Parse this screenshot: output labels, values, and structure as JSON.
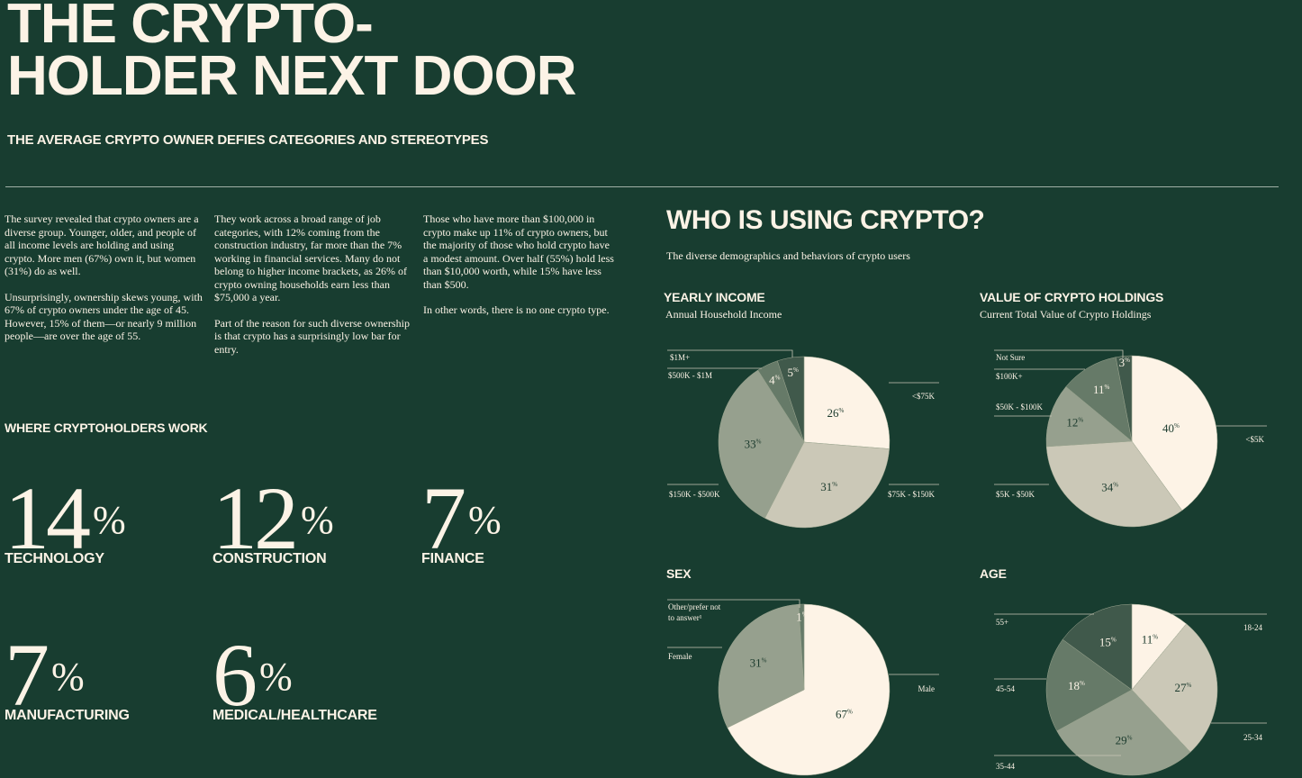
{
  "header": {
    "title_line1": "THE CRYPTO-",
    "title_line2": "HOLDER NEXT DOOR",
    "subtitle": "THE AVERAGE CRYPTO OWNER DEFIES CATEGORIES AND STEREOTYPES"
  },
  "body": {
    "col1": [
      "The survey revealed that crypto owners are a diverse group. Younger, older, and people of all income levels are holding and using crypto. More men (67%) own it, but women (31%) do as well.",
      "Unsurprisingly, ownership skews young, with 67% of crypto owners under the age of 45. However, 15% of them—or nearly 9 million people—are over the age of 55."
    ],
    "col2": [
      "They work across a broad range of job categories, with 12% coming from the construction industry, far more than the 7% working in financial services. Many do not belong to higher income brackets, as 26% of crypto owning households earn less than $75,000 a year.",
      "Part of the reason for such diverse ownership is that crypto has a surprisingly low bar for entry."
    ],
    "col3": [
      "Those who have more than $100,000 in crypto make up 11% of crypto owners, but the majority of those who hold crypto have a modest amount. Over half (55%) hold less than $10,000 worth, while 15% have less than $500.",
      "In other words, there is no one crypto type."
    ]
  },
  "work": {
    "heading": "WHERE CRYPTOHOLDERS WORK",
    "percent_sign": "%",
    "stats": [
      {
        "value": "14",
        "label": "TECHNOLOGY"
      },
      {
        "value": "12",
        "label": "CONSTRUCTION"
      },
      {
        "value": "7",
        "label": "FINANCE"
      },
      {
        "value": "7",
        "label": "MANUFACTURING"
      },
      {
        "value": "6",
        "label": "MEDICAL/HEALTHCARE"
      }
    ]
  },
  "who": {
    "title": "WHO IS USING CRYPTO?",
    "subtitle": "The diverse demographics and behaviors of crypto users"
  },
  "colors": {
    "background": "#183d30",
    "text": "#fcf3e6",
    "slice_cream": "#fdf3e6",
    "slice_light": "#cbc8b7",
    "slice_mid": "#96a08e",
    "slice_dark": "#667a68",
    "slice_darker": "#40594b",
    "leader": "#c9c6b6"
  },
  "chart_data": [
    {
      "type": "pie",
      "title": "YEARLY INCOME",
      "subtitle": "Annual Household Income",
      "categories": [
        "<$75K",
        "$75K - $150K",
        "$150K - $500K",
        "$500K - $1M",
        "$1M+"
      ],
      "values": [
        26,
        31,
        33,
        4,
        5
      ]
    },
    {
      "type": "pie",
      "title": "VALUE OF CRYPTO HOLDINGS",
      "subtitle": "Current Total Value of Crypto Holdings",
      "categories": [
        "<$5K",
        "$5K - $50K",
        "$50K - $100K",
        "$100K+",
        "Not Sure"
      ],
      "values": [
        40,
        34,
        12,
        11,
        3
      ]
    },
    {
      "type": "pie",
      "title": "SEX",
      "subtitle": "",
      "categories": [
        "Male",
        "Female",
        "Other/prefer not to answer¹"
      ],
      "values": [
        67,
        31,
        1
      ]
    },
    {
      "type": "pie",
      "title": "AGE",
      "subtitle": "",
      "categories": [
        "18-24",
        "25-34",
        "35-44",
        "45-54",
        "55+"
      ],
      "values": [
        11,
        27,
        29,
        18,
        15
      ]
    }
  ]
}
